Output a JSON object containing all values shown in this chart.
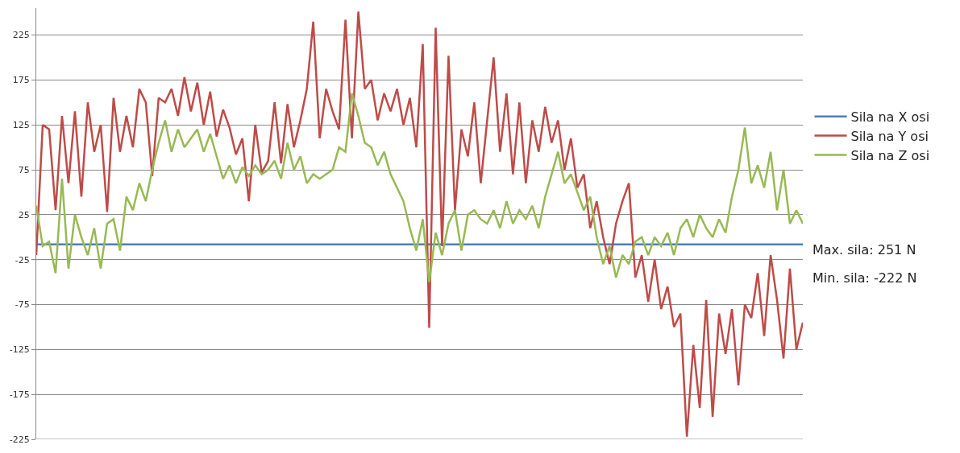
{
  "chart_data": {
    "type": "line",
    "categories": [
      null,
      null,
      null,
      null,
      null,
      null,
      null,
      null,
      null,
      null,
      null,
      null,
      null,
      null,
      null,
      null,
      null,
      null,
      null,
      null,
      null,
      null,
      null,
      null,
      null,
      null,
      null,
      null,
      null,
      null,
      null,
      null,
      null,
      null,
      null,
      null,
      null,
      null,
      null,
      null,
      null,
      null,
      null,
      null,
      null,
      null,
      null,
      null,
      null,
      null,
      null,
      null,
      null,
      null,
      null,
      null,
      null,
      null,
      null,
      null,
      null,
      null,
      null,
      null,
      null,
      null,
      null,
      null,
      null,
      null,
      null,
      null,
      null,
      null,
      null,
      null,
      null,
      null,
      null,
      null,
      null,
      null,
      null,
      null,
      null,
      null,
      null,
      null,
      null,
      null,
      null,
      null,
      null,
      null,
      null,
      null,
      null,
      null,
      null,
      null,
      null,
      null,
      null,
      null,
      null,
      null,
      null,
      null,
      null,
      null,
      null,
      null,
      null,
      null,
      null,
      null,
      null,
      null,
      null,
      null
    ],
    "series": [
      {
        "name": "Sila na X osi",
        "color": "#4a7ebb",
        "values": [
          -8,
          -8,
          -8,
          -8,
          -8,
          -8,
          -8,
          -8,
          -8,
          -8,
          -8,
          -8,
          -8,
          -8,
          -8,
          -8,
          -8,
          -8,
          -8,
          -8,
          -8,
          -8,
          -8,
          -8,
          -8,
          -8,
          -8,
          -8,
          -8,
          -8,
          -8,
          -8,
          -8,
          -8,
          -8,
          -8,
          -8,
          -8,
          -8,
          -8,
          -8,
          -8,
          -8,
          -8,
          -8,
          -8,
          -8,
          -8,
          -8,
          -8,
          -8,
          -8,
          -8,
          -8,
          -8,
          -8,
          -8,
          -8,
          -8,
          -8,
          -8,
          -8,
          -8,
          -8,
          -8,
          -8,
          -8,
          -8,
          -8,
          -8,
          -8,
          -8,
          -8,
          -8,
          -8,
          -8,
          -8,
          -8,
          -8,
          -8,
          -8,
          -8,
          -8,
          -8,
          -8,
          -8,
          -8,
          -8,
          -8,
          -8,
          -8,
          -8,
          -8,
          -8,
          -8,
          -8,
          -8,
          -8,
          -8,
          -8,
          -8,
          -8,
          -8,
          -8,
          -8,
          -8,
          -8,
          -8,
          -8,
          -8,
          -8,
          -8,
          -8,
          -8,
          -8,
          -8,
          -8,
          -8,
          -8,
          -8
        ]
      },
      {
        "name": "Sila na Y osi",
        "color": "#be4b48",
        "values": [
          -20,
          125,
          120,
          30,
          135,
          60,
          140,
          45,
          150,
          95,
          125,
          28,
          155,
          95,
          135,
          100,
          165,
          150,
          68,
          155,
          150,
          165,
          135,
          178,
          140,
          172,
          125,
          162,
          112,
          142,
          122,
          92,
          110,
          40,
          125,
          72,
          85,
          150,
          82,
          148,
          100,
          130,
          165,
          240,
          110,
          165,
          140,
          120,
          242,
          110,
          251,
          165,
          175,
          130,
          160,
          140,
          165,
          125,
          155,
          100,
          215,
          -101,
          233,
          -10,
          202,
          30,
          120,
          90,
          150,
          60,
          130,
          200,
          95,
          160,
          70,
          150,
          60,
          130,
          95,
          145,
          105,
          130,
          75,
          110,
          55,
          70,
          10,
          40,
          0,
          -30,
          15,
          40,
          60,
          -45,
          -20,
          -72,
          -25,
          -80,
          -55,
          -100,
          -85,
          -222,
          -120,
          -190,
          -70,
          -200,
          -85,
          -130,
          -80,
          -165,
          -75,
          -90,
          -40,
          -110,
          -20,
          -70,
          -135,
          -35,
          -125,
          -95
        ]
      },
      {
        "name": "Sila na Z osi",
        "color": "#98b954",
        "values": [
          35,
          -10,
          -5,
          -40,
          65,
          -35,
          25,
          0,
          -20,
          10,
          -35,
          15,
          20,
          -15,
          45,
          30,
          60,
          40,
          75,
          105,
          130,
          95,
          120,
          100,
          110,
          120,
          95,
          115,
          90,
          65,
          80,
          60,
          78,
          68,
          80,
          70,
          75,
          85,
          65,
          105,
          75,
          90,
          60,
          70,
          65,
          70,
          75,
          100,
          95,
          160,
          135,
          105,
          100,
          80,
          95,
          70,
          55,
          40,
          10,
          -15,
          20,
          -50,
          5,
          -20,
          15,
          30,
          -15,
          25,
          30,
          20,
          15,
          30,
          10,
          40,
          15,
          30,
          20,
          35,
          10,
          45,
          70,
          95,
          60,
          70,
          50,
          30,
          45,
          0,
          -30,
          -10,
          -45,
          -20,
          -30,
          -5,
          0,
          -20,
          0,
          -10,
          5,
          -20,
          10,
          20,
          0,
          25,
          10,
          0,
          20,
          5,
          45,
          75,
          122,
          60,
          80,
          55,
          95,
          30,
          75,
          15,
          30,
          15
        ]
      }
    ],
    "ylim": [
      -225,
      255
    ],
    "yticks": [
      -225,
      -175,
      -125,
      -75,
      -25,
      25,
      75,
      125,
      175,
      225
    ],
    "grid": "y",
    "legend": "right",
    "annotations": [
      "Max. sila: 251 N",
      "Min. sila: -222 N"
    ]
  }
}
